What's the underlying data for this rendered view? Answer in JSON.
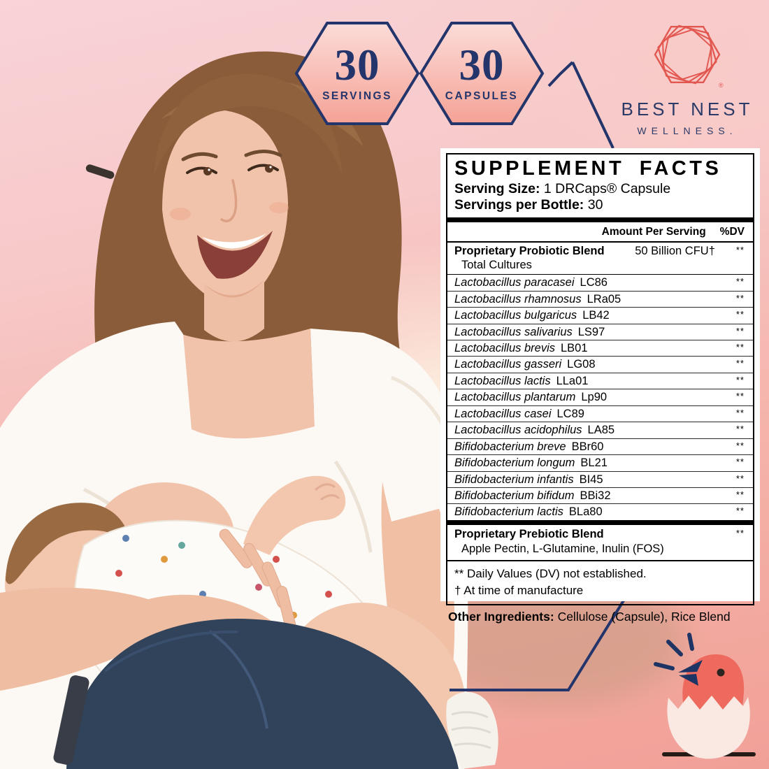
{
  "badges": [
    {
      "value": "30",
      "label": "SERVINGS"
    },
    {
      "value": "30",
      "label": "CAPSULES"
    }
  ],
  "brand": {
    "name": "BEST NEST",
    "tagline": "WELLNESS.",
    "registered_mark": "®",
    "logo_icon": "nested-hexagons",
    "accent_color": "#e2574f",
    "navy_color": "#24356b"
  },
  "mascot_icon": "chick-hatching-from-egg",
  "panel": {
    "title": "SUPPLEMENT FACTS",
    "serving_size_label": "Serving Size:",
    "serving_size_value": "1 DRCaps® Capsule",
    "servings_per_bottle_label": "Servings per Bottle:",
    "servings_per_bottle_value": "30",
    "amount_header": "Amount Per Serving",
    "dv_header": "%DV",
    "probiotic_blend": {
      "name": "Proprietary Probiotic Blend",
      "sub": "Total Cultures",
      "amount": "50 Billion CFU†",
      "dv": "**"
    },
    "strains": [
      {
        "species": "Lactobacillus paracasei",
        "code": "LC86",
        "dv": "**"
      },
      {
        "species": "Lactobacillus rhamnosus",
        "code": "LRa05",
        "dv": "**"
      },
      {
        "species": "Lactobacillus bulgaricus",
        "code": "LB42",
        "dv": "**"
      },
      {
        "species": "Lactobacillus salivarius",
        "code": "LS97",
        "dv": "**"
      },
      {
        "species": "Lactobacillus brevis",
        "code": "LB01",
        "dv": "**"
      },
      {
        "species": "Lactobacillus gasseri",
        "code": "LG08",
        "dv": "**"
      },
      {
        "species": "Lactobacillus lactis",
        "code": "LLa01",
        "dv": "**"
      },
      {
        "species": "Lactobacillus plantarum",
        "code": "Lp90",
        "dv": "**"
      },
      {
        "species": "Lactobacillus casei",
        "code": "LC89",
        "dv": "**"
      },
      {
        "species": "Lactobacillus acidophilus",
        "code": "LA85",
        "dv": "**"
      },
      {
        "species": "Bifidobacterium breve",
        "code": "BBr60",
        "dv": "**"
      },
      {
        "species": "Bifidobacterium longum",
        "code": "BL21",
        "dv": "**"
      },
      {
        "species": "Bifidobacterium infantis",
        "code": "BI45",
        "dv": "**"
      },
      {
        "species": "Bifidobacterium bifidum",
        "code": "BBi32",
        "dv": "**"
      },
      {
        "species": "Bifidobacterium lactis",
        "code": "BLa80",
        "dv": "**"
      }
    ],
    "prebiotic_blend": {
      "name": "Proprietary Prebiotic Blend",
      "sub": "Apple Pectin, L-Glutamine, Inulin (FOS)",
      "dv": "**"
    },
    "footnotes": [
      "** Daily Values (DV) not established.",
      "† At time of manufacture"
    ],
    "other_ingredients_label": "Other Ingredients:",
    "other_ingredients_value": "Cellulose (Capsule), Rice Blend"
  }
}
